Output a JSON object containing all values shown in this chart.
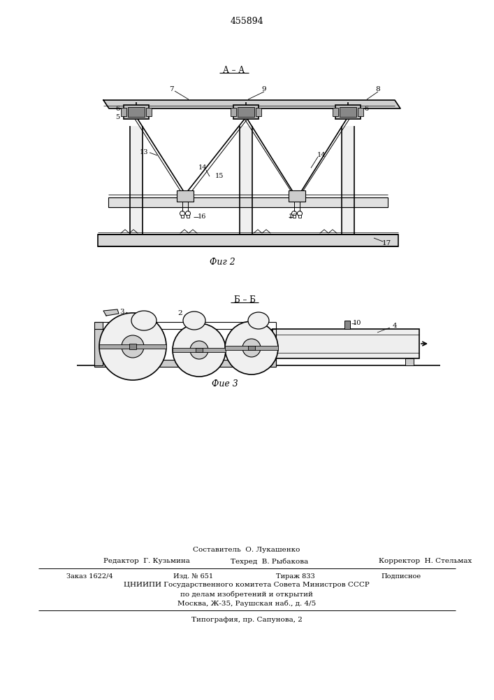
{
  "patent_number": "455894",
  "fig2_label": "А – А",
  "fig2_caption": "Фиг 2",
  "fig3_label": "Б – Б",
  "fig3_caption": "Фие 3",
  "footer_line1": "Составитель  О. Лукашенко",
  "footer_editor": "Редактор  Г. Кузьмина",
  "footer_tech": "Техред  В. Рыбакова",
  "footer_corrector": "Корректор  Н. Стельмах",
  "footer_order": "Заказ 1622/4",
  "footer_pub": "Изд. № 651",
  "footer_tirazh": "Тираж 833",
  "footer_podp": "Подписное",
  "footer_org": "ЦНИИПИ Государственного комитета Совета Министров СССР",
  "footer_org2": "по делам изобретений и открытий",
  "footer_addr": "Москва, Ж-35, Раушская наб., д. 4/5",
  "footer_typ": "Типография, пр. Сапунова, 2",
  "bg_color": "#ffffff"
}
